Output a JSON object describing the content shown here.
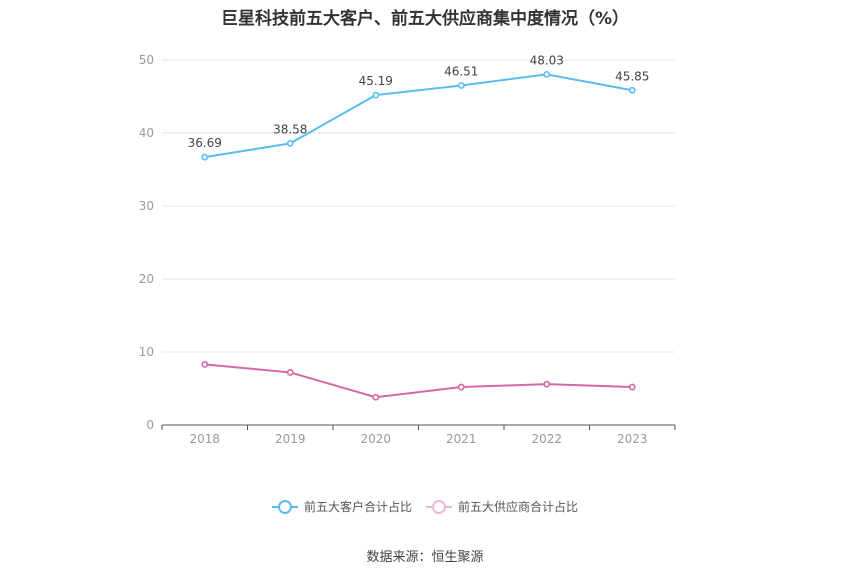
{
  "chart_data": {
    "type": "line",
    "title": "巨星科技前五大客户、前五大供应商集中度情况（%）",
    "categories": [
      "2018",
      "2019",
      "2020",
      "2021",
      "2022",
      "2023"
    ],
    "ylim": [
      0,
      50
    ],
    "yticks": [
      0,
      10,
      20,
      30,
      40,
      50
    ],
    "grid": true,
    "legend_position": "bottom",
    "series": [
      {
        "name": "前五大客户合计占比",
        "values": [
          36.69,
          38.58,
          45.19,
          46.51,
          48.03,
          45.85
        ],
        "color": "#5bbcf0",
        "show_labels": true
      },
      {
        "name": "前五大供应商合计占比",
        "values": [
          8.3,
          7.2,
          3.8,
          5.2,
          5.6,
          5.2
        ],
        "color": "#d468a8",
        "show_labels": false
      }
    ]
  },
  "source": "数据来源：恒生聚源"
}
